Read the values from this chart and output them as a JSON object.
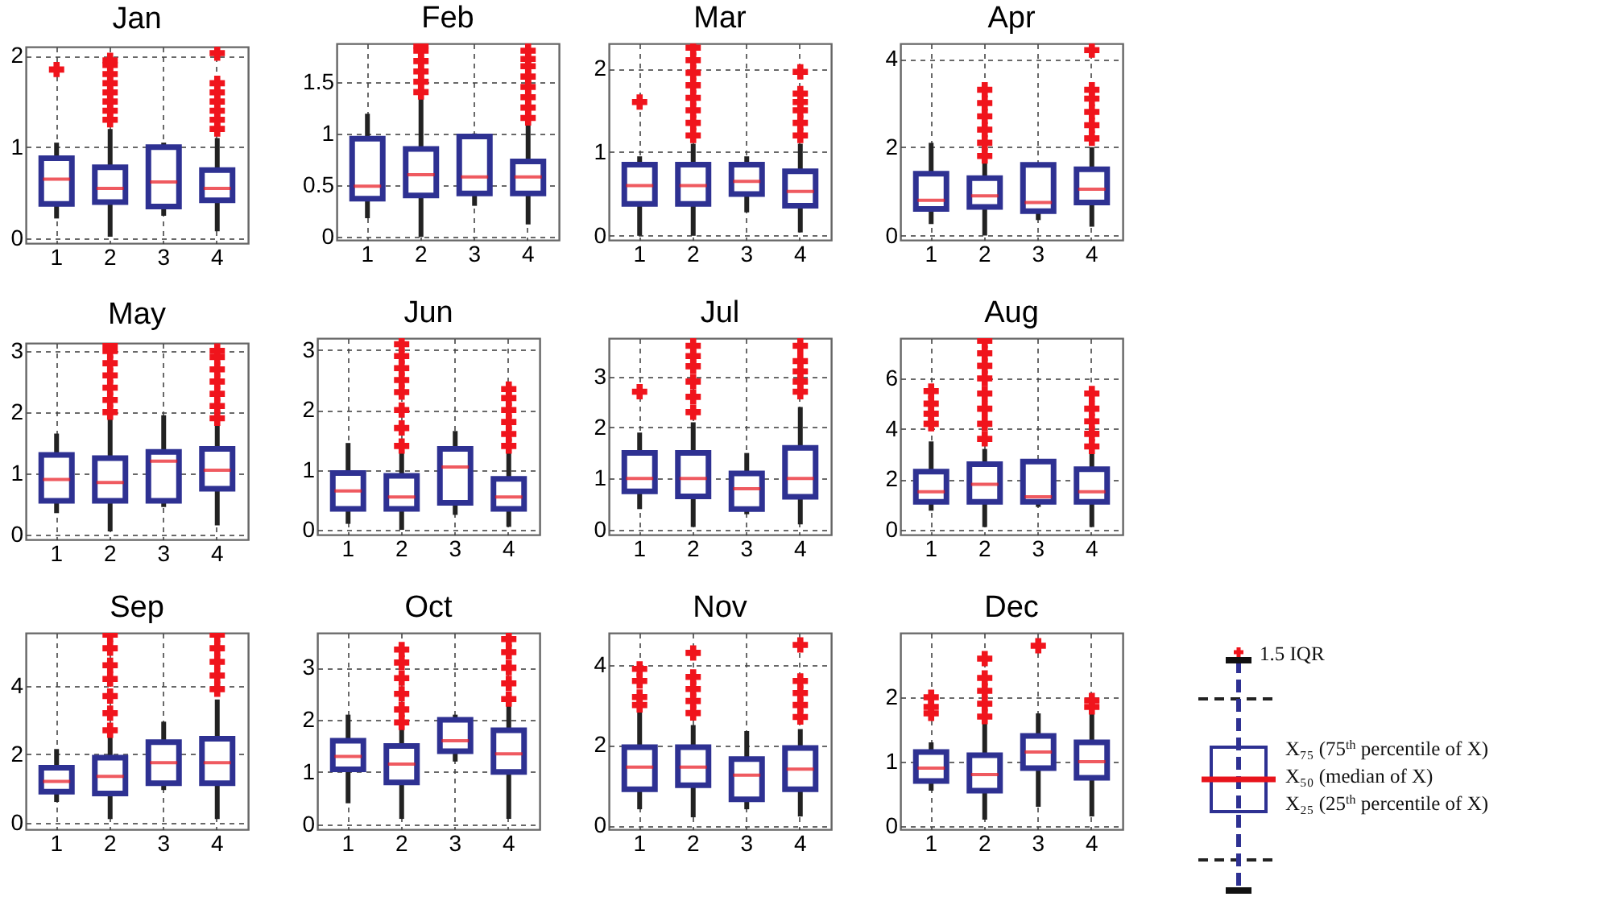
{
  "chart_data": [
    {
      "type": "box",
      "title": "Jan",
      "categories": [
        "1",
        "2",
        "3",
        "4"
      ],
      "ylim": [
        -0.05,
        2.1
      ],
      "yticks": [
        0,
        1,
        2
      ],
      "grid": true,
      "marker": "cross",
      "boxes": [
        {
          "low": 0.22,
          "q1": 0.38,
          "median": 0.65,
          "q3": 0.88,
          "high": 1.05,
          "outliers": [
            1.85
          ]
        },
        {
          "low": 0.02,
          "q1": 0.4,
          "median": 0.55,
          "q3": 0.78,
          "high": 1.2,
          "outliers": [
            1.3,
            1.4,
            1.5,
            1.6,
            1.7,
            1.8,
            1.9,
            1.95
          ]
        },
        {
          "low": 0.25,
          "q1": 0.35,
          "median": 0.62,
          "q3": 1.0,
          "high": 1.05
        },
        {
          "low": 0.08,
          "q1": 0.42,
          "median": 0.55,
          "q3": 0.75,
          "high": 1.1,
          "outliers": [
            1.2,
            1.3,
            1.4,
            1.5,
            1.6,
            1.7,
            2.03
          ]
        }
      ]
    },
    {
      "type": "box",
      "title": "Feb",
      "categories": [
        "1",
        "2",
        "3",
        "4"
      ],
      "ylim": [
        -0.03,
        1.87
      ],
      "yticks": [
        0,
        0.5,
        1,
        1.5
      ],
      "grid": true,
      "marker": "cross",
      "boxes": [
        {
          "low": 0.18,
          "q1": 0.37,
          "median": 0.49,
          "q3": 0.95,
          "high": 1.19
        },
        {
          "low": 0.0,
          "q1": 0.4,
          "median": 0.6,
          "q3": 0.85,
          "high": 1.35,
          "outliers": [
            1.4,
            1.5,
            1.6,
            1.7,
            1.8,
            1.85
          ]
        },
        {
          "low": 0.3,
          "q1": 0.42,
          "median": 0.58,
          "q3": 0.97,
          "high": 1.0
        },
        {
          "low": 0.12,
          "q1": 0.42,
          "median": 0.58,
          "q3": 0.73,
          "high": 1.1,
          "outliers": [
            1.15,
            1.25,
            1.35,
            1.45,
            1.55,
            1.65,
            1.72,
            1.8
          ]
        }
      ]
    },
    {
      "type": "box",
      "title": "Mar",
      "categories": [
        "1",
        "2",
        "3",
        "4"
      ],
      "ylim": [
        -0.05,
        2.3
      ],
      "yticks": [
        0,
        1,
        2
      ],
      "grid": true,
      "marker": "cross",
      "boxes": [
        {
          "low": 0.0,
          "q1": 0.38,
          "median": 0.6,
          "q3": 0.85,
          "high": 0.95,
          "outliers": [
            1.6
          ]
        },
        {
          "low": 0.0,
          "q1": 0.38,
          "median": 0.6,
          "q3": 0.85,
          "high": 1.1,
          "outliers": [
            1.2,
            1.35,
            1.5,
            1.65,
            1.8,
            1.95,
            2.1,
            2.25
          ]
        },
        {
          "low": 0.28,
          "q1": 0.5,
          "median": 0.65,
          "q3": 0.85,
          "high": 0.95
        },
        {
          "low": 0.04,
          "q1": 0.36,
          "median": 0.53,
          "q3": 0.77,
          "high": 1.1,
          "outliers": [
            1.2,
            1.35,
            1.5,
            1.6,
            1.7,
            1.96
          ]
        }
      ]
    },
    {
      "type": "box",
      "title": "Apr",
      "categories": [
        "1",
        "2",
        "3",
        "4"
      ],
      "ylim": [
        -0.1,
        4.35
      ],
      "yticks": [
        0,
        2,
        4
      ],
      "grid": true,
      "marker": "cross",
      "boxes": [
        {
          "low": 0.26,
          "q1": 0.6,
          "median": 0.8,
          "q3": 1.4,
          "high": 2.1
        },
        {
          "low": 0.0,
          "q1": 0.65,
          "median": 0.9,
          "q3": 1.3,
          "high": 1.7,
          "outliers": [
            1.8,
            2.1,
            2.4,
            2.7,
            3.0,
            3.3
          ]
        },
        {
          "low": 0.35,
          "q1": 0.55,
          "median": 0.75,
          "q3": 1.6,
          "high": 1.6
        },
        {
          "low": 0.2,
          "q1": 0.75,
          "median": 1.05,
          "q3": 1.5,
          "high": 2.0,
          "outliers": [
            2.2,
            2.5,
            2.8,
            3.1,
            3.3,
            4.2
          ]
        }
      ]
    },
    {
      "type": "box",
      "title": "May",
      "categories": [
        "1",
        "2",
        "3",
        "4"
      ],
      "ylim": [
        -0.08,
        3.13
      ],
      "yticks": [
        0,
        1,
        2,
        3
      ],
      "grid": true,
      "marker": "cross",
      "boxes": [
        {
          "low": 0.35,
          "q1": 0.55,
          "median": 0.9,
          "q3": 1.3,
          "high": 1.65
        },
        {
          "low": 0.05,
          "q1": 0.55,
          "median": 0.85,
          "q3": 1.25,
          "high": 1.9,
          "outliers": [
            2.0,
            2.2,
            2.4,
            2.6,
            2.8,
            3.0,
            3.1
          ]
        },
        {
          "low": 0.45,
          "q1": 0.55,
          "median": 1.2,
          "q3": 1.35,
          "high": 1.95
        },
        {
          "low": 0.15,
          "q1": 0.75,
          "median": 1.05,
          "q3": 1.4,
          "high": 1.8,
          "outliers": [
            1.9,
            2.1,
            2.3,
            2.5,
            2.7,
            2.9,
            3.0
          ]
        }
      ]
    },
    {
      "type": "box",
      "title": "Jun",
      "categories": [
        "1",
        "2",
        "3",
        "4"
      ],
      "ylim": [
        -0.08,
        3.2
      ],
      "yticks": [
        0,
        1,
        2,
        3
      ],
      "grid": true,
      "marker": "cross",
      "boxes": [
        {
          "low": 0.1,
          "q1": 0.35,
          "median": 0.65,
          "q3": 0.95,
          "high": 1.45
        },
        {
          "low": 0.0,
          "q1": 0.35,
          "median": 0.55,
          "q3": 0.9,
          "high": 1.3,
          "outliers": [
            1.4,
            1.7,
            2.0,
            2.3,
            2.5,
            2.7,
            2.9,
            3.1
          ]
        },
        {
          "low": 0.25,
          "q1": 0.45,
          "median": 1.05,
          "q3": 1.35,
          "high": 1.65
        },
        {
          "low": 0.05,
          "q1": 0.35,
          "median": 0.55,
          "q3": 0.85,
          "high": 1.3,
          "outliers": [
            1.4,
            1.6,
            1.8,
            2.0,
            2.2,
            2.35
          ]
        }
      ]
    },
    {
      "type": "box",
      "title": "Jul",
      "categories": [
        "1",
        "2",
        "3",
        "4"
      ],
      "ylim": [
        -0.1,
        3.75
      ],
      "yticks": [
        0,
        1,
        2,
        3
      ],
      "grid": true,
      "marker": "cross",
      "boxes": [
        {
          "low": 0.4,
          "q1": 0.75,
          "median": 1.0,
          "q3": 1.5,
          "high": 1.9,
          "outliers": [
            2.7
          ]
        },
        {
          "low": 0.05,
          "q1": 0.65,
          "median": 1.0,
          "q3": 1.5,
          "high": 2.1,
          "outliers": [
            2.3,
            2.6,
            2.9,
            3.2,
            3.4,
            3.6
          ]
        },
        {
          "low": 0.3,
          "q1": 0.4,
          "median": 0.8,
          "q3": 1.1,
          "high": 1.5
        },
        {
          "low": 0.1,
          "q1": 0.64,
          "median": 1.0,
          "q3": 1.6,
          "high": 2.4,
          "outliers": [
            2.7,
            2.9,
            3.1,
            3.3,
            3.6
          ]
        }
      ]
    },
    {
      "type": "box",
      "title": "Aug",
      "categories": [
        "1",
        "2",
        "3",
        "4"
      ],
      "ylim": [
        -0.2,
        7.6
      ],
      "yticks": [
        0,
        2,
        4,
        6
      ],
      "grid": true,
      "marker": "cross",
      "boxes": [
        {
          "low": 0.75,
          "q1": 1.1,
          "median": 1.5,
          "q3": 2.3,
          "high": 3.5,
          "outliers": [
            4.2,
            4.6,
            5.0,
            5.5
          ]
        },
        {
          "low": 0.1,
          "q1": 1.1,
          "median": 1.8,
          "q3": 2.6,
          "high": 3.2,
          "outliers": [
            3.6,
            4.2,
            4.8,
            5.4,
            6.0,
            6.5,
            7.0,
            7.5
          ]
        },
        {
          "low": 0.9,
          "q1": 1.1,
          "median": 1.3,
          "q3": 2.7,
          "high": 2.7
        },
        {
          "low": 0.1,
          "q1": 1.1,
          "median": 1.5,
          "q3": 2.4,
          "high": 3.1,
          "outliers": [
            3.3,
            3.8,
            4.3,
            4.8,
            5.4
          ]
        }
      ]
    },
    {
      "type": "box",
      "title": "Sep",
      "categories": [
        "1",
        "2",
        "3",
        "4"
      ],
      "ylim": [
        -0.2,
        5.55
      ],
      "yticks": [
        0,
        2,
        4
      ],
      "grid": true,
      "marker": "cross",
      "boxes": [
        {
          "low": 0.6,
          "q1": 0.9,
          "median": 1.2,
          "q3": 1.6,
          "high": 2.15
        },
        {
          "low": 0.1,
          "q1": 0.85,
          "median": 1.35,
          "q3": 1.9,
          "high": 2.5,
          "outliers": [
            2.7,
            3.2,
            3.7,
            4.2,
            4.6,
            5.1,
            5.5
          ]
        },
        {
          "low": 0.95,
          "q1": 1.15,
          "median": 1.75,
          "q3": 2.35,
          "high": 2.95
        },
        {
          "low": 0.1,
          "q1": 1.15,
          "median": 1.75,
          "q3": 2.45,
          "high": 3.6,
          "outliers": [
            3.9,
            4.3,
            4.7,
            5.1,
            5.5
          ]
        }
      ]
    },
    {
      "type": "box",
      "title": "Oct",
      "categories": [
        "1",
        "2",
        "3",
        "4"
      ],
      "ylim": [
        -0.1,
        3.67
      ],
      "yticks": [
        0,
        1,
        2,
        3
      ],
      "grid": true,
      "marker": "cross",
      "boxes": [
        {
          "low": 0.4,
          "q1": 1.05,
          "median": 1.3,
          "q3": 1.6,
          "high": 2.1
        },
        {
          "low": 0.1,
          "q1": 0.8,
          "median": 1.15,
          "q3": 1.5,
          "high": 1.9,
          "outliers": [
            1.95,
            2.2,
            2.5,
            2.8,
            3.1,
            3.35
          ]
        },
        {
          "low": 1.2,
          "q1": 1.4,
          "median": 1.6,
          "q3": 2.0,
          "high": 2.1
        },
        {
          "low": 0.1,
          "q1": 1.0,
          "median": 1.35,
          "q3": 1.8,
          "high": 2.3,
          "outliers": [
            2.4,
            2.7,
            3.0,
            3.3,
            3.55
          ]
        }
      ]
    },
    {
      "type": "box",
      "title": "Nov",
      "categories": [
        "1",
        "2",
        "3",
        "4"
      ],
      "ylim": [
        -0.1,
        4.8
      ],
      "yticks": [
        0,
        2,
        4
      ],
      "grid": true,
      "marker": "cross",
      "boxes": [
        {
          "low": 0.4,
          "q1": 0.9,
          "median": 1.45,
          "q3": 1.95,
          "high": 2.85,
          "outliers": [
            3.0,
            3.2,
            3.6,
            3.9
          ]
        },
        {
          "low": 0.2,
          "q1": 1.0,
          "median": 1.45,
          "q3": 1.95,
          "high": 2.5,
          "outliers": [
            2.8,
            3.1,
            3.4,
            3.7,
            4.3
          ]
        },
        {
          "low": 0.4,
          "q1": 0.65,
          "median": 1.25,
          "q3": 1.65,
          "high": 2.35
        },
        {
          "low": 0.22,
          "q1": 0.9,
          "median": 1.4,
          "q3": 1.93,
          "high": 2.4,
          "outliers": [
            2.7,
            3.0,
            3.3,
            3.6,
            4.5
          ]
        }
      ]
    },
    {
      "type": "box",
      "title": "Dec",
      "categories": [
        "1",
        "2",
        "3",
        "4"
      ],
      "ylim": [
        -0.05,
        3.0
      ],
      "yticks": [
        0,
        1,
        2
      ],
      "grid": true,
      "marker": "cross",
      "boxes": [
        {
          "low": 0.55,
          "q1": 0.7,
          "median": 0.9,
          "q3": 1.15,
          "high": 1.3,
          "outliers": [
            1.75,
            1.85,
            2.0
          ]
        },
        {
          "low": 0.1,
          "q1": 0.55,
          "median": 0.8,
          "q3": 1.1,
          "high": 1.6,
          "outliers": [
            1.7,
            1.9,
            2.1,
            2.3,
            2.6
          ]
        },
        {
          "low": 0.3,
          "q1": 0.9,
          "median": 1.15,
          "q3": 1.4,
          "high": 1.75,
          "outliers": [
            2.8
          ]
        },
        {
          "low": 0.15,
          "q1": 0.75,
          "median": 1.0,
          "q3": 1.3,
          "high": 1.75,
          "outliers": [
            1.85,
            1.95
          ]
        }
      ]
    },
    {
      "type": "other",
      "annotations": [
        "1.5 IQR",
        "X₇₅ (75$^{th}$ percentile of X)",
        "X₅₀ (median of X)",
        "X₂₅ (25$^{th}$ percentile of X)"
      ]
    }
  ]
}
